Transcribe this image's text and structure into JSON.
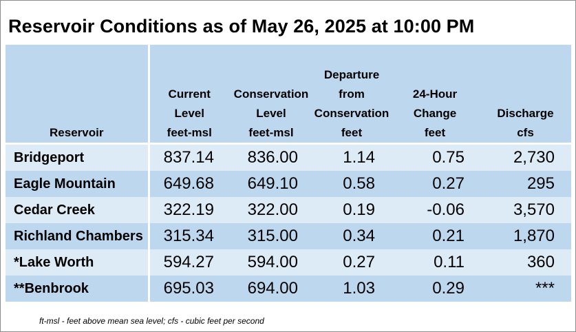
{
  "title": "Reservoir Conditions as of May 26, 2025 at 10:00 PM",
  "columns": [
    {
      "lines": [
        "Reservoir"
      ]
    },
    {
      "lines": [
        "Current",
        "Level",
        "feet-msl"
      ]
    },
    {
      "lines": [
        "Conservation",
        "Level",
        "feet-msl"
      ]
    },
    {
      "lines": [
        "Departure",
        "from",
        "Conservation",
        "feet"
      ]
    },
    {
      "lines": [
        "24-Hour",
        "Change",
        "feet"
      ]
    },
    {
      "lines": [
        "Discharge",
        "cfs"
      ]
    }
  ],
  "rows": [
    {
      "name": "Bridgeport",
      "current": "837.14",
      "conservation": "836.00",
      "departure": "1.14",
      "change": "0.75",
      "discharge": "2,730"
    },
    {
      "name": "Eagle Mountain",
      "current": "649.68",
      "conservation": "649.10",
      "departure": "0.58",
      "change": "0.27",
      "discharge": "295"
    },
    {
      "name": "Cedar Creek",
      "current": "322.19",
      "conservation": "322.00",
      "departure": "0.19",
      "change": "-0.06",
      "discharge": "3,570"
    },
    {
      "name": "Richland Chambers",
      "current": "315.34",
      "conservation": "315.00",
      "departure": "0.34",
      "change": "0.21",
      "discharge": "1,870"
    },
    {
      "name": "*Lake Worth",
      "current": "594.27",
      "conservation": "594.00",
      "departure": "0.27",
      "change": "0.11",
      "discharge": "360"
    },
    {
      "name": "**Benbrook",
      "current": "695.03",
      "conservation": "694.00",
      "departure": "1.03",
      "change": "0.29",
      "discharge": "***"
    }
  ],
  "footnote": "ft-msl - feet above mean sea level; cfs - cubic feet per second",
  "colors": {
    "header_bg": "#bdd7ee",
    "row_light": "#ddebf7",
    "row_dark": "#bdd7ee"
  }
}
